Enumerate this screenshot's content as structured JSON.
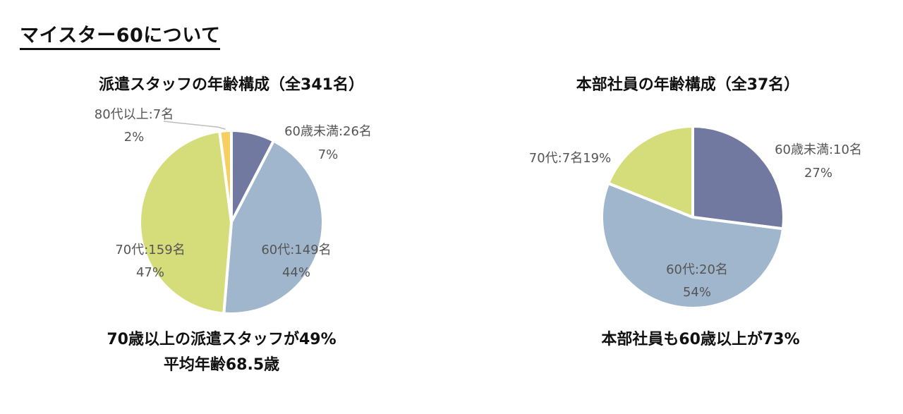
{
  "page_title": "マイスター60について",
  "chart_data": [
    {
      "type": "pie",
      "title": "派遣スタッフの年齢構成（全341名）",
      "slices": [
        {
          "name": "60歳未満:26名",
          "value": 26,
          "percent": "7%",
          "color": "#7179a0"
        },
        {
          "name": "60代:149名",
          "value": 149,
          "percent": "44%",
          "color": "#a0b6cc"
        },
        {
          "name": "70代:159名",
          "value": 159,
          "percent": "47%",
          "color": "#d4dd7a"
        },
        {
          "name": "80代以上:7名",
          "value": 7,
          "percent": "2%",
          "color": "#f5cf62"
        }
      ],
      "summary": [
        "70歳以上の派遣スタッフが49%",
        "平均年齢68.5歳"
      ]
    },
    {
      "type": "pie",
      "title": "本部社員の年齢構成（全37名）",
      "slices": [
        {
          "name": "60歳未満:10名",
          "value": 10,
          "percent": "27%",
          "color": "#7179a0"
        },
        {
          "name": "60代:20名",
          "value": 20,
          "percent": "54%",
          "color": "#a0b6cc"
        },
        {
          "name": "70代:7名",
          "value": 7,
          "percent": "19%",
          "color": "#d4dd7a"
        }
      ],
      "summary": [
        "本部社員も60歳以上が73%"
      ]
    }
  ]
}
